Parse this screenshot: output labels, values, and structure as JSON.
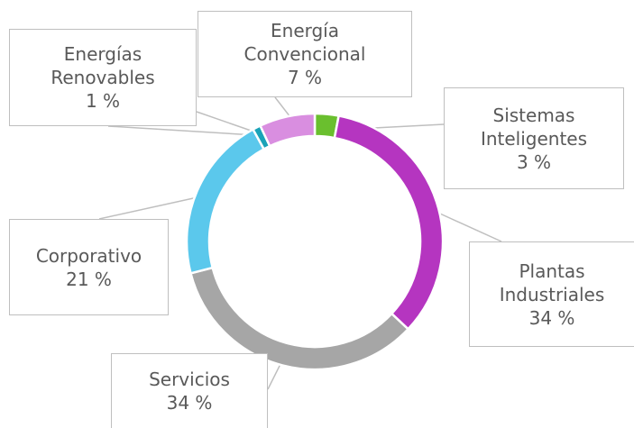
{
  "chart_data": {
    "type": "donut",
    "categories": [
      "Sistemas Inteligentes",
      "Plantas Industriales",
      "Servicios",
      "Corporativo",
      "Energías Renovables",
      "Energía Convencional"
    ],
    "values": [
      3,
      34,
      34,
      21,
      1,
      7
    ],
    "value_labels": [
      "3 %",
      "34 %",
      "34 %",
      "21 %",
      "1 %",
      "7 %"
    ],
    "colors": [
      "#6abf2e",
      "#b535c0",
      "#a6a6a6",
      "#5bc8ec",
      "#1aa3b8",
      "#d98ee0"
    ]
  }
}
